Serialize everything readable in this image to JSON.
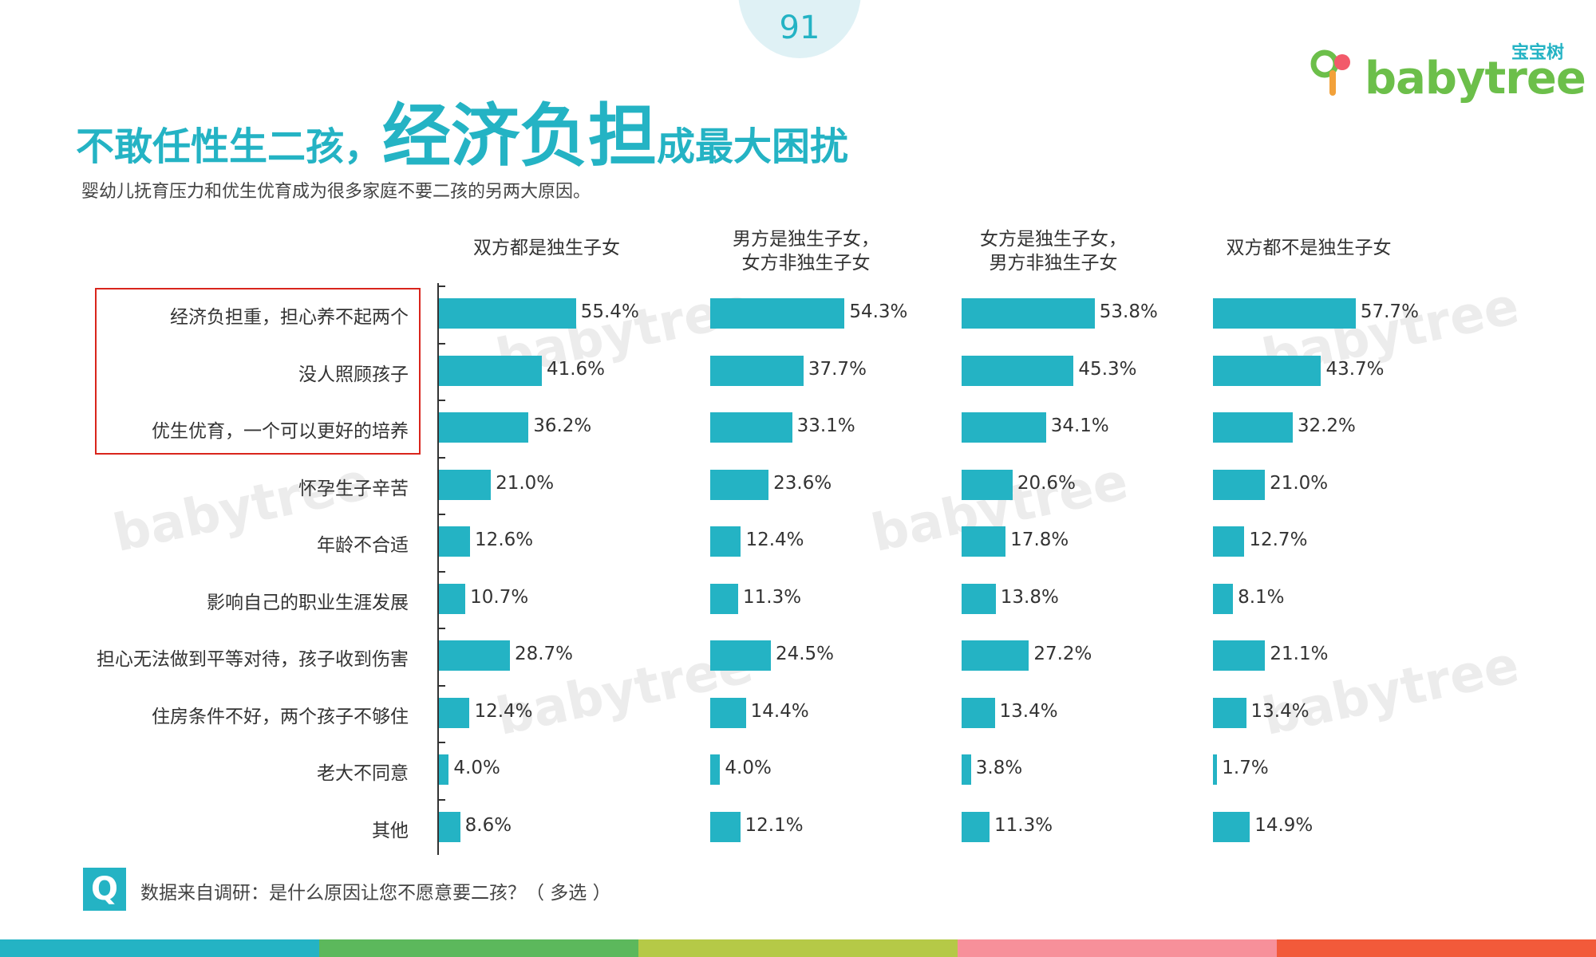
{
  "page_number": "91",
  "logo": {
    "cn": "宝宝树",
    "en": "babytree"
  },
  "title": {
    "part1": "不敢任性生二孩，",
    "part2": "经济负担",
    "part3": "成最大困扰"
  },
  "subtitle": "婴幼儿抚育压力和优生优育成为很多家庭不要二孩的另两大原因。",
  "source": {
    "icon": "Q",
    "text": "数据来自调研：是什么原因让您不愿意要二孩？（ 多选 ）"
  },
  "colors": {
    "accent": "#24b3c4",
    "highlight": "#d9251c",
    "footer": [
      "#24b3c4",
      "#5cb85c",
      "#b5c947",
      "#f7909a",
      "#f25a3a"
    ]
  },
  "chart_data": {
    "type": "bar",
    "orientation": "horizontal",
    "categories": [
      "经济负担重，担心养不起两个",
      "没人照顾孩子",
      "优生优育，一个可以更好的培养",
      "怀孕生子辛苦",
      "年龄不合适",
      "影响自己的职业生涯发展",
      "担心无法做到平等对待，孩子收到伤害",
      "住房条件不好，两个孩子不够住",
      "老大不同意",
      "其他"
    ],
    "series": [
      {
        "name": "双方都是独生子女",
        "values": [
          55.4,
          41.6,
          36.2,
          21.0,
          12.6,
          10.7,
          28.7,
          12.4,
          4.0,
          8.6
        ],
        "labels": [
          "55.4%",
          "41.6%",
          "36.2%",
          "21.0%",
          "12.6%",
          "10.7%",
          "28.7%",
          "12.4%",
          "4.0%",
          "8.6%"
        ]
      },
      {
        "name": "男方是独生子女，\n女方非独生子女",
        "values": [
          54.3,
          37.7,
          33.1,
          23.6,
          12.4,
          11.3,
          24.5,
          14.4,
          4.0,
          12.1
        ],
        "labels": [
          "54.3%",
          "37.7%",
          "33.1%",
          "23.6%",
          "12.4%",
          "11.3%",
          "24.5%",
          "14.4%",
          "4.0%",
          "12.1%"
        ]
      },
      {
        "name": "女方是独生子女，\n男方非独生子女",
        "values": [
          53.8,
          45.3,
          34.1,
          20.6,
          17.8,
          13.8,
          27.2,
          13.4,
          3.8,
          11.3
        ],
        "labels": [
          "53.8%",
          "45.3%",
          "34.1%",
          "20.6%",
          "17.8%",
          "13.8%",
          "27.2%",
          "13.4%",
          "3.8%",
          "11.3%"
        ]
      },
      {
        "name": "双方都不是独生子女",
        "values": [
          57.7,
          43.7,
          32.2,
          21.0,
          12.7,
          8.1,
          21.1,
          13.4,
          1.7,
          14.9
        ],
        "labels": [
          "57.7%",
          "43.7%",
          "32.2%",
          "21.0%",
          "12.7%",
          "8.1%",
          "21.1%",
          "13.4%",
          "1.7%",
          "14.9%"
        ]
      }
    ],
    "highlighted_categories": [
      0,
      1,
      2
    ],
    "grid": false,
    "legend": "none"
  }
}
